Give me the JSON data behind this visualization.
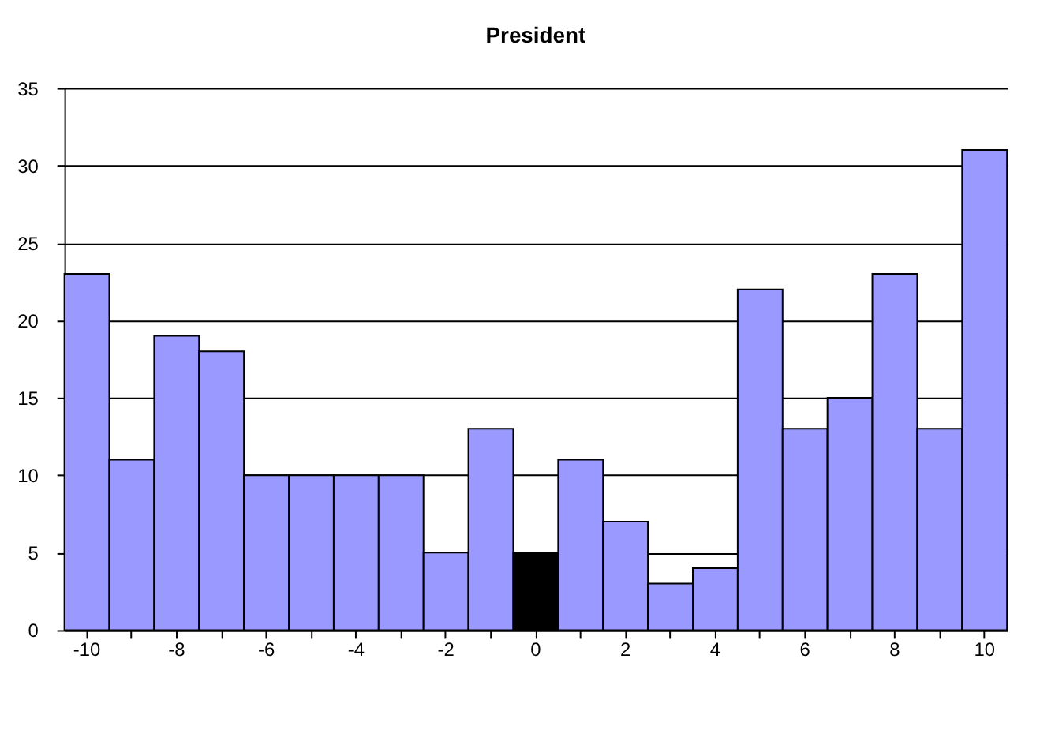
{
  "chart_data": {
    "type": "bar",
    "title": "President",
    "categories": [
      "-10",
      null,
      "-8",
      null,
      "-6",
      null,
      "-4",
      null,
      "-2",
      null,
      "0",
      null,
      "2",
      null,
      "4",
      null,
      "6",
      null,
      "8",
      null,
      "10"
    ],
    "values": [
      23,
      11,
      19,
      18,
      10,
      10,
      10,
      10,
      5,
      13,
      5,
      11,
      7,
      3,
      4,
      22,
      13,
      15,
      23,
      13,
      31
    ],
    "colors": [
      "#9999ff",
      "#9999ff",
      "#9999ff",
      "#9999ff",
      "#9999ff",
      "#9999ff",
      "#9999ff",
      "#9999ff",
      "#9999ff",
      "#9999ff",
      "#000000",
      "#9999ff",
      "#9999ff",
      "#9999ff",
      "#9999ff",
      "#9999ff",
      "#9999ff",
      "#9999ff",
      "#9999ff",
      "#9999ff",
      "#9999ff"
    ],
    "ylim": [
      0,
      35
    ],
    "yticks": [
      0,
      5,
      10,
      15,
      20,
      25,
      30,
      35
    ],
    "grid": "y"
  }
}
